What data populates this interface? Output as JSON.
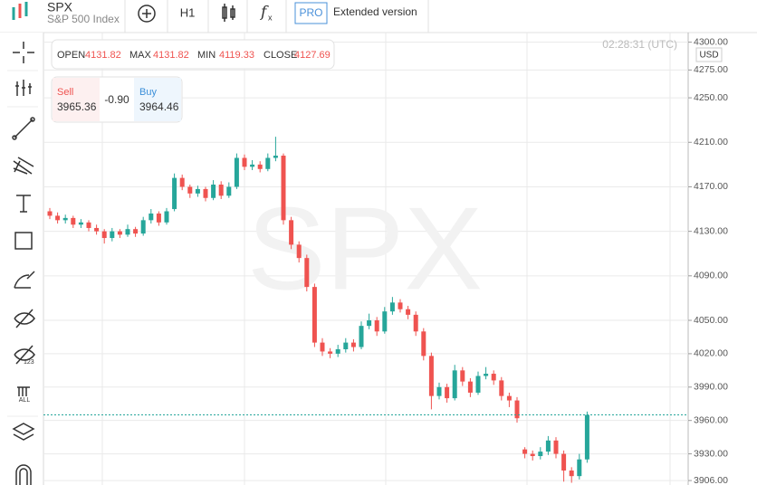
{
  "header": {
    "symbol": "SPX",
    "name": "S&P 500 Index",
    "interval": "H1",
    "pro": "PRO",
    "extended": "Extended version"
  },
  "info": {
    "open_label": "OPEN",
    "open": "4131.82",
    "max_label": "MAX",
    "max": "4131.82",
    "min_label": "MIN",
    "min": "4119.33",
    "close_label": "CLOSE",
    "close": "4127.69"
  },
  "trade": {
    "sell_label": "Sell",
    "sell": "3965.36",
    "spread": "-0.90",
    "buy_label": "Buy",
    "buy": "3964.46"
  },
  "chart_data": {
    "type": "candlestick",
    "watermark": "SPX",
    "time": "02:28:31 (UTC)",
    "currency": "USD",
    "up_color": "#26a69a",
    "down_color": "#ef5350",
    "grid": true,
    "ylim": [
      3902,
      4307
    ],
    "yticks": [
      {
        "value": 4300,
        "label": "4300.00"
      },
      {
        "value": 4275,
        "label": "4275.00"
      },
      {
        "value": 4250,
        "label": "4250.00"
      },
      {
        "value": 4210,
        "label": "4210.00"
      },
      {
        "value": 4170,
        "label": "4170.00"
      },
      {
        "value": 4130,
        "label": "4130.00"
      },
      {
        "value": 4090,
        "label": "4090.00"
      },
      {
        "value": 4050,
        "label": "4050.00"
      },
      {
        "value": 4020,
        "label": "4020.00"
      },
      {
        "value": 3990,
        "label": "3990.00"
      },
      {
        "value": 3960,
        "label": "3960.00"
      },
      {
        "value": 3930,
        "label": "3930.00"
      },
      {
        "value": 3906,
        "label": "3906.00"
      }
    ],
    "ohlc": [
      [
        4148,
        4151,
        4141,
        4144
      ],
      [
        4144,
        4147,
        4137,
        4140
      ],
      [
        4140,
        4145,
        4137,
        4142
      ],
      [
        4142,
        4144,
        4133,
        4136
      ],
      [
        4136,
        4141,
        4133,
        4138
      ],
      [
        4138,
        4140,
        4130,
        4133
      ],
      [
        4133,
        4136,
        4127,
        4130
      ],
      [
        4130,
        4132,
        4119,
        4124
      ],
      [
        4124,
        4133,
        4121,
        4130
      ],
      [
        4130,
        4132,
        4124,
        4127
      ],
      [
        4127,
        4136,
        4125,
        4132
      ],
      [
        4132,
        4134,
        4125,
        4128
      ],
      [
        4128,
        4143,
        4126,
        4140
      ],
      [
        4140,
        4150,
        4137,
        4146
      ],
      [
        4146,
        4148,
        4135,
        4138
      ],
      [
        4138,
        4151,
        4136,
        4148
      ],
      [
        4150,
        4182,
        4148,
        4178
      ],
      [
        4178,
        4181,
        4167,
        4170
      ],
      [
        4170,
        4172,
        4160,
        4164
      ],
      [
        4164,
        4171,
        4161,
        4168
      ],
      [
        4168,
        4170,
        4157,
        4160
      ],
      [
        4160,
        4176,
        4158,
        4172
      ],
      [
        4172,
        4175,
        4159,
        4162
      ],
      [
        4162,
        4174,
        4160,
        4170
      ],
      [
        4170,
        4200,
        4168,
        4196
      ],
      [
        4196,
        4199,
        4185,
        4188
      ],
      [
        4188,
        4194,
        4185,
        4190
      ],
      [
        4190,
        4193,
        4183,
        4186
      ],
      [
        4186,
        4200,
        4184,
        4196
      ],
      [
        4196,
        4215,
        4193,
        4198
      ],
      [
        4198,
        4200,
        4136,
        4140
      ],
      [
        4140,
        4143,
        4114,
        4118
      ],
      [
        4118,
        4121,
        4102,
        4106
      ],
      [
        4106,
        4109,
        4076,
        4080
      ],
      [
        4080,
        4083,
        4026,
        4030
      ],
      [
        4030,
        4034,
        4018,
        4022
      ],
      [
        4022,
        4025,
        4016,
        4020
      ],
      [
        4020,
        4028,
        4017,
        4024
      ],
      [
        4024,
        4034,
        4021,
        4030
      ],
      [
        4030,
        4033,
        4022,
        4026
      ],
      [
        4026,
        4049,
        4024,
        4045
      ],
      [
        4045,
        4056,
        4042,
        4050
      ],
      [
        4050,
        4053,
        4036,
        4040
      ],
      [
        4040,
        4062,
        4038,
        4058
      ],
      [
        4058,
        4071,
        4055,
        4066
      ],
      [
        4066,
        4069,
        4057,
        4060
      ],
      [
        4060,
        4063,
        4051,
        4055
      ],
      [
        4055,
        4058,
        4036,
        4040
      ],
      [
        4040,
        4043,
        4014,
        4018
      ],
      [
        4018,
        4021,
        3970,
        3982
      ],
      [
        3982,
        3994,
        3979,
        3990
      ],
      [
        3990,
        3993,
        3976,
        3980
      ],
      [
        3980,
        4010,
        3978,
        4005
      ],
      [
        4005,
        4008,
        3991,
        3995
      ],
      [
        3995,
        3998,
        3981,
        3985
      ],
      [
        3985,
        4004,
        3983,
        4000
      ],
      [
        4000,
        4008,
        3997,
        4002
      ],
      [
        4002,
        4005,
        3992,
        3996
      ],
      [
        3996,
        3999,
        3978,
        3982
      ],
      [
        3982,
        3985,
        3972,
        3978
      ],
      [
        3978,
        3981,
        3958,
        3962
      ],
      [
        3934,
        3936,
        3926,
        3930
      ],
      [
        3930,
        3933,
        3924,
        3928
      ],
      [
        3928,
        3936,
        3925,
        3932
      ],
      [
        3932,
        3946,
        3929,
        3942
      ],
      [
        3942,
        3945,
        3926,
        3930
      ],
      [
        3930,
        3933,
        3905,
        3915
      ],
      [
        3915,
        3918,
        3904,
        3910
      ],
      [
        3910,
        3930,
        3907,
        3925
      ],
      [
        3925,
        3968,
        3922,
        3965
      ]
    ]
  }
}
